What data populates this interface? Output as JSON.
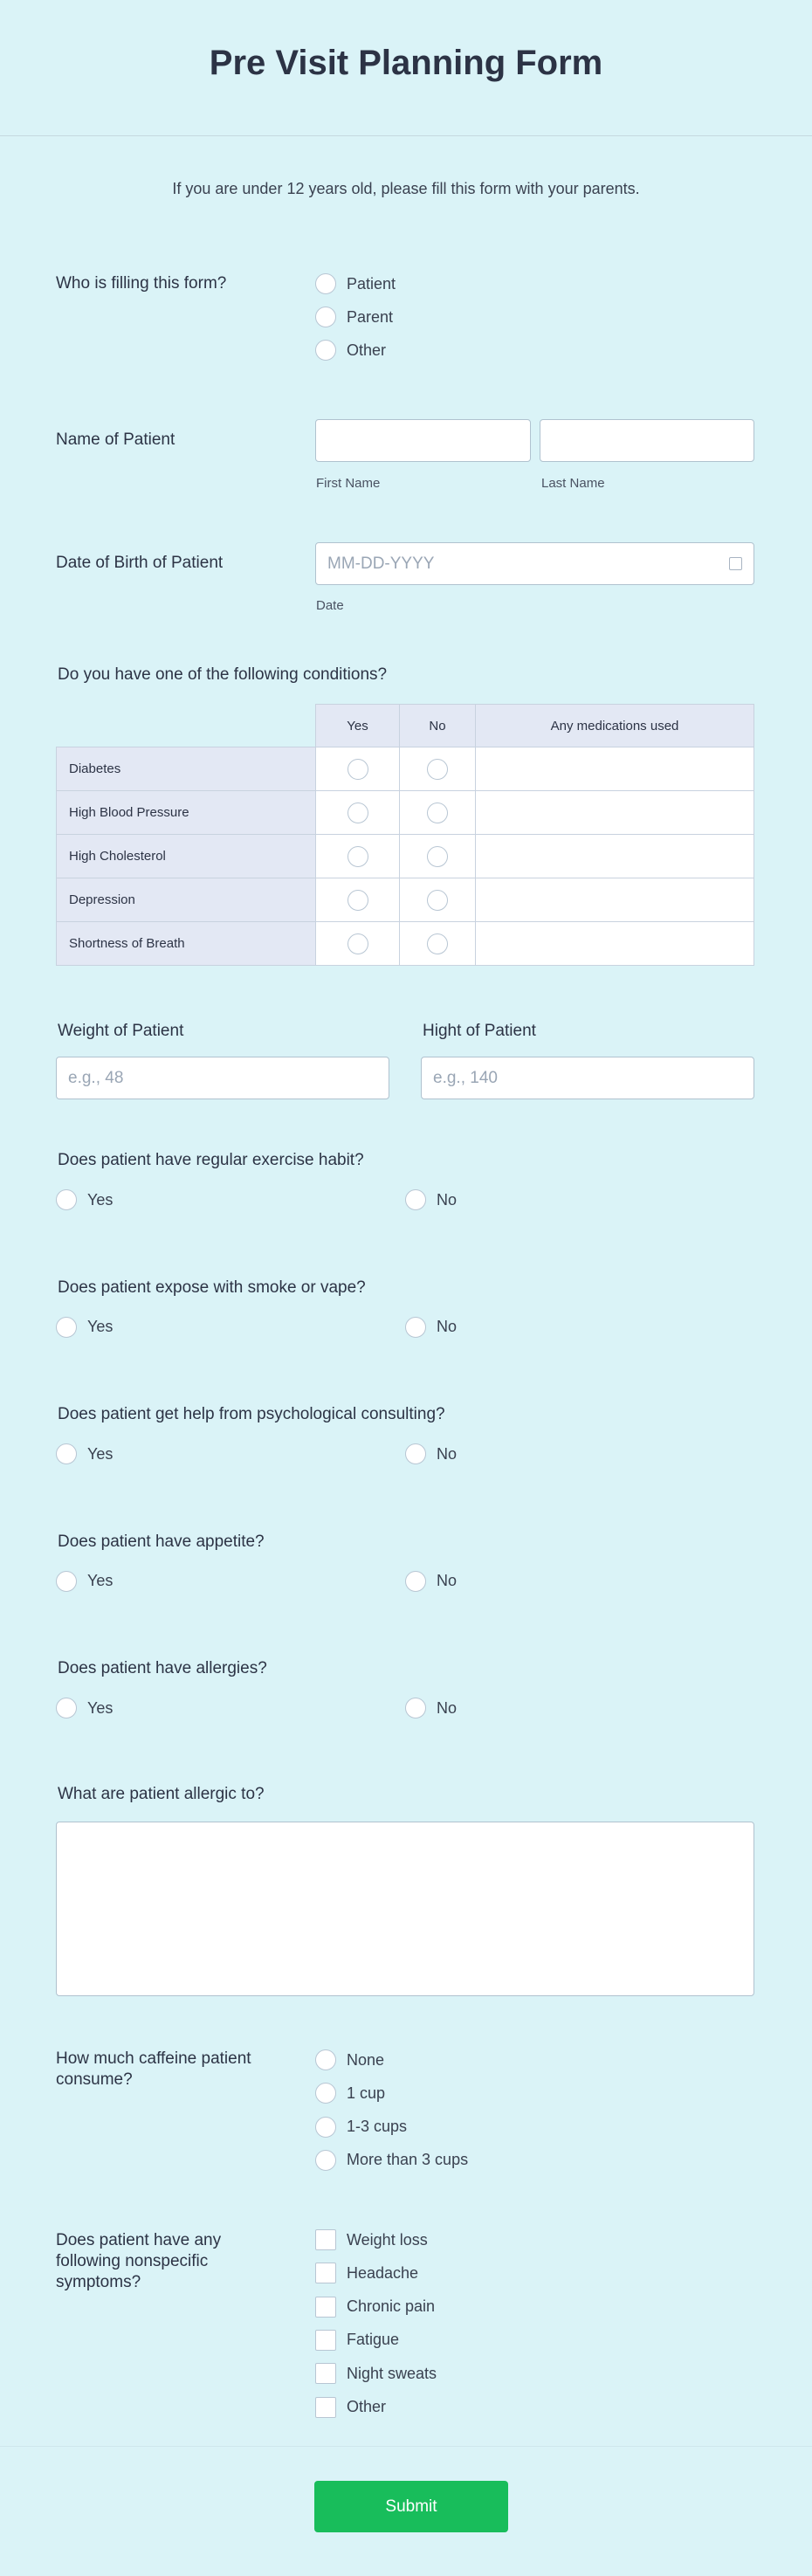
{
  "header": {
    "title": "Pre Visit Planning Form"
  },
  "intro": "If you are under 12 years old, please fill this form with your parents.",
  "who": {
    "label": "Who is filling this form?",
    "options": [
      "Patient",
      "Parent",
      "Other"
    ]
  },
  "name": {
    "label": "Name of Patient",
    "first_sublabel": "First Name",
    "last_sublabel": "Last Name",
    "first_value": "",
    "last_value": ""
  },
  "dob": {
    "label": "Date of Birth of Patient",
    "placeholder": "MM-DD-YYYY",
    "sublabel": "Date",
    "icon": "calendar-icon"
  },
  "conditions": {
    "label": "Do you have one of the following conditions?",
    "columns": [
      "Yes",
      "No",
      "Any medications used"
    ],
    "rows": [
      "Diabetes",
      "High Blood Pressure",
      "High Cholesterol",
      "Depression",
      "Shortness of Breath"
    ]
  },
  "weight": {
    "label": "Weight of Patient",
    "placeholder": "e.g., 48"
  },
  "height": {
    "label": "Hight of Patient",
    "placeholder": "e.g., 140"
  },
  "yesno": [
    {
      "label": "Does patient have regular exercise habit?",
      "options": [
        "Yes",
        "No"
      ]
    },
    {
      "label": "Does patient expose with smoke or vape?",
      "options": [
        "Yes",
        "No"
      ]
    },
    {
      "label": "Does patient get help from psychological consulting?",
      "options": [
        "Yes",
        "No"
      ]
    },
    {
      "label": "Does patient have appetite?",
      "options": [
        "Yes",
        "No"
      ]
    },
    {
      "label": "Does patient have allergies?",
      "options": [
        "Yes",
        "No"
      ]
    }
  ],
  "allergic": {
    "label": "What are patient allergic to?",
    "value": ""
  },
  "caffeine": {
    "label": "How much caffeine patient consume?",
    "options": [
      "None",
      "1 cup",
      "1-3 cups",
      "More than 3 cups"
    ]
  },
  "symptoms": {
    "label": "Does patient have any following nonspecific symptoms?",
    "options": [
      "Weight loss",
      "Headache",
      "Chronic pain",
      "Fatigue",
      "Night sweats",
      "Other"
    ]
  },
  "submit": {
    "label": "Submit",
    "color": "#18bd5b"
  }
}
